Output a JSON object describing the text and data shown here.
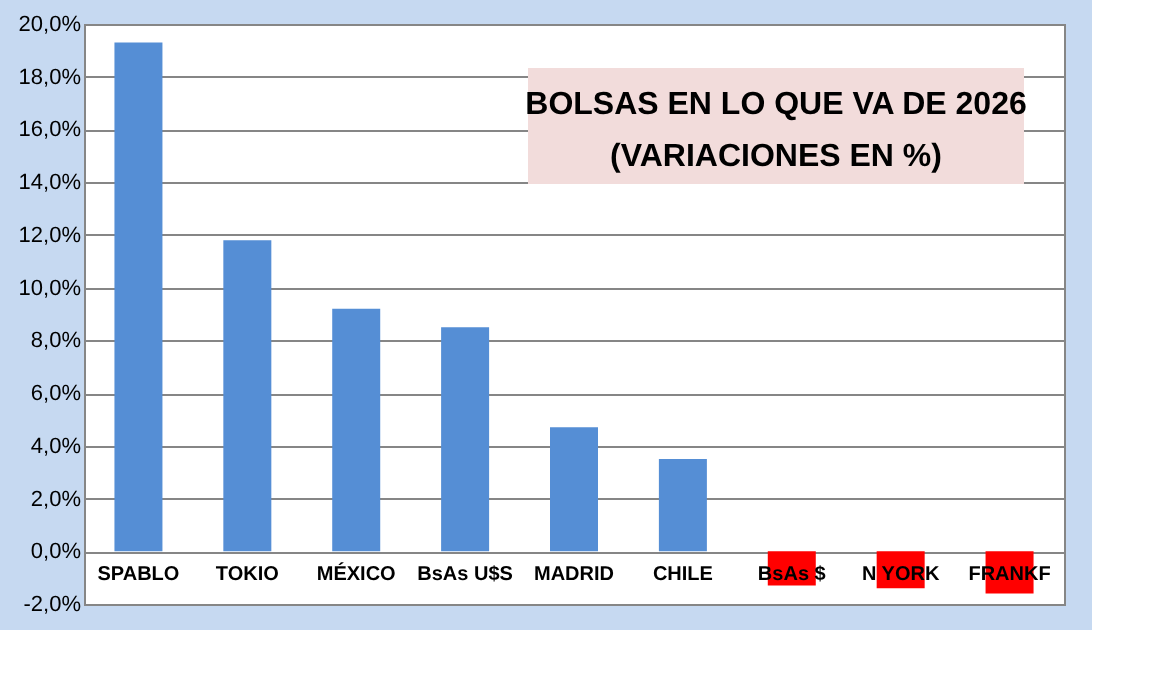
{
  "chart_data": {
    "type": "bar",
    "title": "BOLSAS EN LO QUE VA DE 2026",
    "subtitle": "(VARIACIONES EN %)",
    "categories": [
      "SPABLO",
      "TOKIO",
      "MÉXICO",
      "BsAs U$S",
      "MADRID",
      "CHILE",
      "BsAs $",
      "N YORK",
      "FRANKF"
    ],
    "values": [
      19.3,
      11.8,
      9.2,
      8.5,
      4.7,
      3.5,
      -1.3,
      -1.4,
      -1.6
    ],
    "colors": [
      "#558ed5",
      "#558ed5",
      "#558ed5",
      "#558ed5",
      "#558ed5",
      "#558ed5",
      "#ff0000",
      "#ff0000",
      "#ff0000"
    ],
    "ylim": [
      -2,
      20
    ],
    "yticks": [
      {
        "value": -2,
        "label": "-2,0%"
      },
      {
        "value": 0,
        "label": "0,0%"
      },
      {
        "value": 2,
        "label": "2,0%"
      },
      {
        "value": 4,
        "label": "4,0%"
      },
      {
        "value": 6,
        "label": "6,0%"
      },
      {
        "value": 8,
        "label": "8,0%"
      },
      {
        "value": 10,
        "label": "10,0%"
      },
      {
        "value": 12,
        "label": "12,0%"
      },
      {
        "value": 14,
        "label": "14,0%"
      },
      {
        "value": 16,
        "label": "16,0%"
      },
      {
        "value": 18,
        "label": "18,0%"
      },
      {
        "value": 20,
        "label": "20,0%"
      }
    ],
    "grid": "y"
  }
}
